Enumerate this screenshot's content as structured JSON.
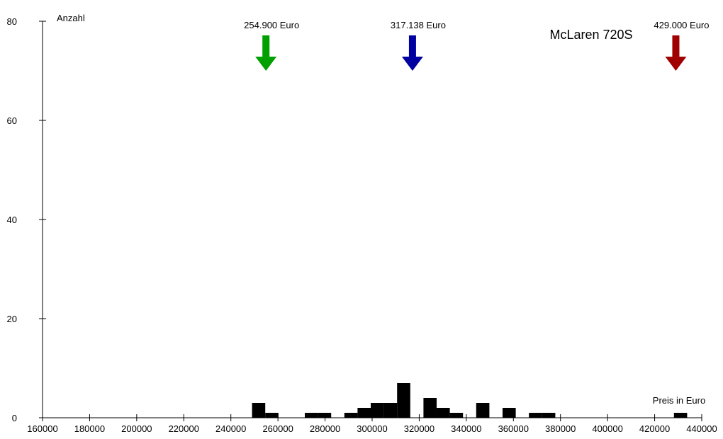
{
  "chart_data": {
    "type": "bar",
    "title": "McLaren 720S",
    "xlabel": "Preis in Euro",
    "ylabel": "Anzahl",
    "xlim": [
      160000,
      440000
    ],
    "ylim": [
      0,
      80
    ],
    "x_ticks": [
      "160000",
      "180000",
      "200000",
      "220000",
      "240000",
      "260000",
      "280000",
      "300000",
      "320000",
      "340000",
      "360000",
      "380000",
      "400000",
      "420000",
      "440000"
    ],
    "y_ticks": [
      "0",
      "20",
      "40",
      "60",
      "80"
    ],
    "bin_width": 5600,
    "bins": [
      {
        "start": 249000,
        "count": 3
      },
      {
        "start": 254600,
        "count": 1
      },
      {
        "start": 271400,
        "count": 1
      },
      {
        "start": 277000,
        "count": 1
      },
      {
        "start": 288200,
        "count": 1
      },
      {
        "start": 293800,
        "count": 2
      },
      {
        "start": 299400,
        "count": 3
      },
      {
        "start": 305000,
        "count": 3
      },
      {
        "start": 310600,
        "count": 7
      },
      {
        "start": 321800,
        "count": 4
      },
      {
        "start": 327400,
        "count": 2
      },
      {
        "start": 333000,
        "count": 1
      },
      {
        "start": 344200,
        "count": 3
      },
      {
        "start": 355400,
        "count": 2
      },
      {
        "start": 366600,
        "count": 1
      },
      {
        "start": 372200,
        "count": 1
      },
      {
        "start": 428200,
        "count": 1
      }
    ],
    "markers": [
      {
        "value": 254900,
        "label": "254.900 Euro",
        "color": "#00a000"
      },
      {
        "value": 317138,
        "label": "317.138 Euro",
        "color": "#0000a0"
      },
      {
        "value": 429000,
        "label": "429.000 Euro",
        "color": "#a00000"
      }
    ],
    "grid": false
  }
}
